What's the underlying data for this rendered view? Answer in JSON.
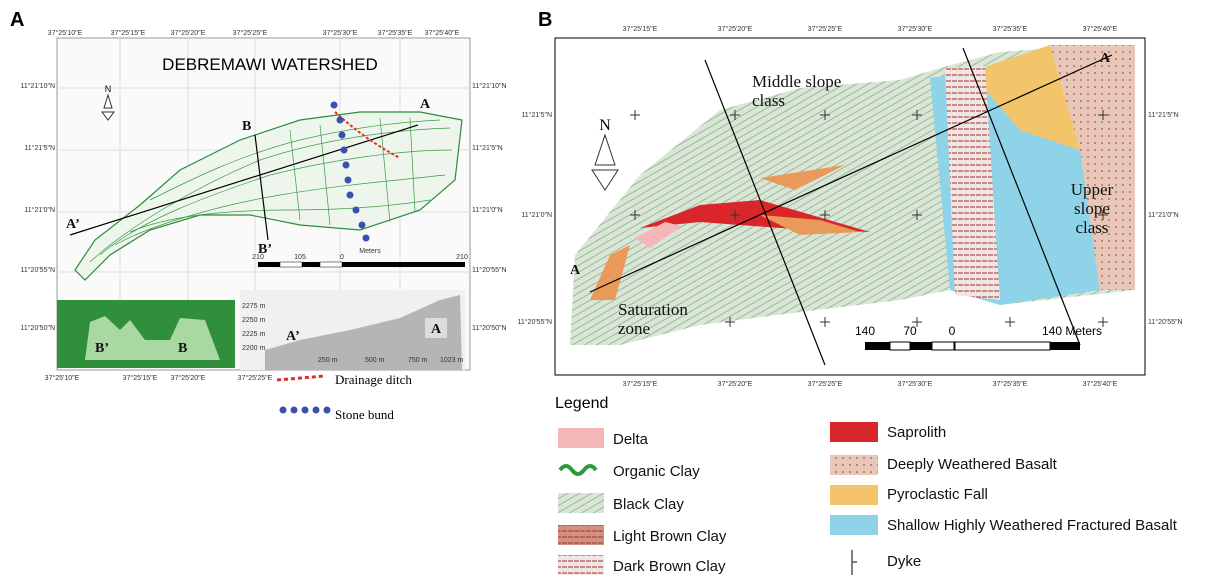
{
  "panel_a": {
    "label": "A",
    "title": "DEBREMAWI WATERSHED",
    "top_coords": [
      "37°25'10\"E",
      "37°25'15\"E",
      "37°25'20\"E",
      "37°25'25\"E",
      "37°25'30\"E",
      "37°25'35\"E",
      "37°25'40\"E"
    ],
    "bottom_coords": [
      "37°25'10\"E",
      "37°25'15\"E",
      "37°25'20\"E",
      "37°25'25\"E"
    ],
    "left_coords": [
      "11°21'10\"N",
      "11°21'5\"N",
      "11°21'0\"N",
      "11°20'55\"N",
      "11°20'50\"N"
    ],
    "right_coords": [
      "11°21'10\"N",
      "11°21'5\"N",
      "11°21'0\"N",
      "11°20'55\"N",
      "11°20'50\"N"
    ],
    "section_labels": [
      "A",
      "B",
      "A’",
      "B’"
    ],
    "scale": {
      "unit": "Meters",
      "ticks": [
        "210",
        "105",
        "0",
        "210"
      ]
    },
    "profile": {
      "y_labels": [
        "2275 m",
        "2250 m",
        "2225 m",
        "2200 m"
      ],
      "x_labels": [
        "250 m",
        "500 m",
        "750 m",
        "1023 m"
      ],
      "start": "A’",
      "end": "A"
    },
    "inset": {
      "start": "B’",
      "end": "B"
    },
    "legend": [
      "Drainage ditch",
      "Stone bund"
    ]
  },
  "panel_b": {
    "label": "B",
    "top_coords": [
      "37°25'15\"E",
      "37°25'20\"E",
      "37°25'25\"E",
      "37°25'30\"E",
      "37°25'35\"E",
      "37°25'40\"E"
    ],
    "bottom_coords": [
      "37°25'15\"E",
      "37°25'20\"E",
      "37°25'25\"E",
      "37°25'30\"E",
      "37°25'35\"E",
      "37°25'40\"E"
    ],
    "left_coords": [
      "11°21'5\"N",
      "11°21'0\"N",
      "11°20'55\"N"
    ],
    "right_coords": [
      "11°21'5\"N",
      "11°21'0\"N",
      "11°20'55\"N"
    ],
    "zones": [
      "Middle slope class",
      "Upper slope class",
      "Saturation zone"
    ],
    "section_labels": [
      "A",
      "A"
    ],
    "scale": [
      "140",
      "70",
      "0",
      "140 Meters"
    ],
    "legend_title": "Legend",
    "legend_items": [
      "Delta",
      "Organic Clay",
      "Black Clay",
      "Light Brown Clay",
      "Dark Brown Clay",
      "Saprolith",
      "Deeply Weathered Basalt",
      "Pyroclastic Fall",
      "Shallow Highly Weathered Fractured Basalt",
      "Dyke"
    ]
  }
}
